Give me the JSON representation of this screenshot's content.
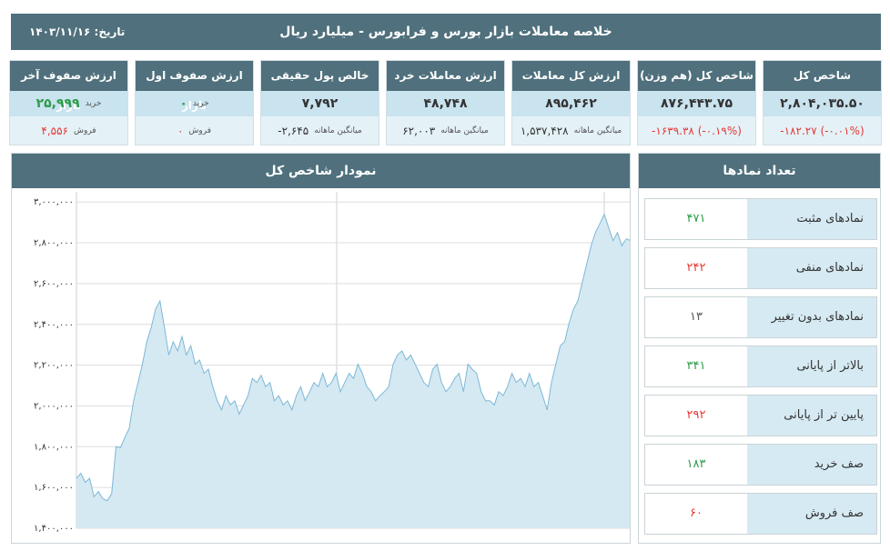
{
  "header": {
    "title": "خلاصه معاملات بازار بورس و فرابورس - میلیارد ریال",
    "date": "تاریخ: ۱۴۰۳/۱۱/۱۶"
  },
  "cards": [
    {
      "title": "شاخص کل",
      "rows": [
        {
          "value": "۲,۸۰۴,۰۳۵.۵۰",
          "color": "#333333"
        },
        {
          "value": "-۱۸۲.۲۷ (-۰.۰۱%)",
          "color": "#e53935"
        }
      ]
    },
    {
      "title": "شاخص کل (هم وزن)",
      "rows": [
        {
          "value": "۸۷۶,۴۴۳.۷۵",
          "color": "#333333"
        },
        {
          "value": "-۱۶۳۹.۳۸ (-۰.۱۹%)",
          "color": "#e53935"
        }
      ]
    },
    {
      "title": "ارزش کل معاملات",
      "rows": [
        {
          "value": "۸۹۵,۴۶۲",
          "color": "#333333"
        },
        {
          "label": "میانگین ماهانه",
          "value": "۱,۵۳۷,۴۲۸",
          "color": "#333333"
        }
      ]
    },
    {
      "title": "ارزش معاملات خرد",
      "rows": [
        {
          "value": "۴۸,۷۴۸",
          "color": "#333333"
        },
        {
          "label": "میانگین ماهانه",
          "value": "۶۲,۰۰۳",
          "color": "#333333"
        }
      ]
    },
    {
      "title": "خالص پول حقیقی",
      "rows": [
        {
          "value": "۷,۷۹۲",
          "color": "#333333"
        },
        {
          "label": "میانگین ماهانه",
          "value": "-۲,۶۴۵",
          "color": "#333333"
        }
      ]
    },
    {
      "title": "ارزش صفوف اول بازار",
      "rows": [
        {
          "label": "خرید",
          "value": "۰",
          "color": "#2e9c4a"
        },
        {
          "label": "فروش",
          "value": "۰",
          "color": "#e53935"
        }
      ]
    },
    {
      "title": "ارزش صفوف آخر بازار",
      "rows": [
        {
          "label": "خرید",
          "value": "۲۵,۹۹۹",
          "color": "#2e9c4a"
        },
        {
          "label": "فروش",
          "value": "۴,۵۵۶",
          "color": "#e53935"
        }
      ]
    }
  ],
  "chart_data": {
    "type": "area",
    "title": "نمودار شاخص کل",
    "series": [
      {
        "color": "#7db8d6",
        "values": [
          1645000,
          1670000,
          1625000,
          1645000,
          1555000,
          1580000,
          1545000,
          1535000,
          1570000,
          1800000,
          1795000,
          1845000,
          1890000,
          2025000,
          2115000,
          2205000,
          2315000,
          2385000,
          2475000,
          2515000,
          2385000,
          2250000,
          2315000,
          2270000,
          2340000,
          2250000,
          2295000,
          2205000,
          2225000,
          2160000,
          2180000,
          2095000,
          2025000,
          1980000,
          2050000,
          2005000,
          2025000,
          1960000,
          2005000,
          2050000,
          2135000,
          2115000,
          2150000,
          2095000,
          2115000,
          2025000,
          2050000,
          2005000,
          2025000,
          1980000,
          2050000,
          2095000,
          2025000,
          2070000,
          2115000,
          2095000,
          2160000,
          2095000,
          2115000,
          2160000,
          2070000,
          2115000,
          2160000,
          2135000,
          2205000,
          2160000,
          2095000,
          2070000,
          2025000,
          2050000,
          2070000,
          2095000,
          2205000,
          2250000,
          2270000,
          2225000,
          2250000,
          2205000,
          2160000,
          2115000,
          2095000,
          2180000,
          2205000,
          2115000,
          2070000,
          2095000,
          2135000,
          2160000,
          2070000,
          2205000,
          2180000,
          2160000,
          2070000,
          2025000,
          2025000,
          2005000,
          2070000,
          2050000,
          2095000,
          2160000,
          2115000,
          2135000,
          2095000,
          2160000,
          2095000,
          2115000,
          2050000,
          1980000,
          2115000,
          2205000,
          2295000,
          2315000,
          2405000,
          2475000,
          2515000,
          2605000,
          2695000,
          2785000,
          2850000,
          2895000,
          2940000,
          2875000,
          2810000,
          2850000,
          2785000,
          2820000,
          2810000
        ]
      }
    ],
    "ylim": [
      1400000,
      3050000
    ],
    "yticks": [
      {
        "value": 1400000,
        "label": "۱,۴۰۰,۰۰۰"
      },
      {
        "value": 1600000,
        "label": "۱,۶۰۰,۰۰۰"
      },
      {
        "value": 1800000,
        "label": "۱,۸۰۰,۰۰۰"
      },
      {
        "value": 2000000,
        "label": "۲,۰۰۰,۰۰۰"
      },
      {
        "value": 2200000,
        "label": "۲,۲۰۰,۰۰۰"
      },
      {
        "value": 2400000,
        "label": "۲,۴۰۰,۰۰۰"
      },
      {
        "value": 2600000,
        "label": "۲,۶۰۰,۰۰۰"
      },
      {
        "value": 2800000,
        "label": "۲,۸۰۰,۰۰۰"
      },
      {
        "value": 3000000,
        "label": "۳,۰۰۰,۰۰۰"
      }
    ],
    "grid": true
  },
  "symbols": {
    "title": "تعداد نمادها",
    "rows": [
      {
        "label": "نمادهای مثبت",
        "value": "۴۷۱",
        "color": "#2e9c4a"
      },
      {
        "label": "نمادهای منفی",
        "value": "۲۴۲",
        "color": "#e53935"
      },
      {
        "label": "نمادهای بدون تغییر",
        "value": "۱۳",
        "color": "#555555"
      },
      {
        "label": "بالاتر از پایانی",
        "value": "۳۴۱",
        "color": "#2e9c4a"
      },
      {
        "label": "پایین تر از پایانی",
        "value": "۲۹۲",
        "color": "#e53935"
      },
      {
        "label": "صف خرید",
        "value": "۱۸۳",
        "color": "#2e9c4a"
      },
      {
        "label": "صف فروش",
        "value": "۶۰",
        "color": "#e53935"
      }
    ]
  }
}
